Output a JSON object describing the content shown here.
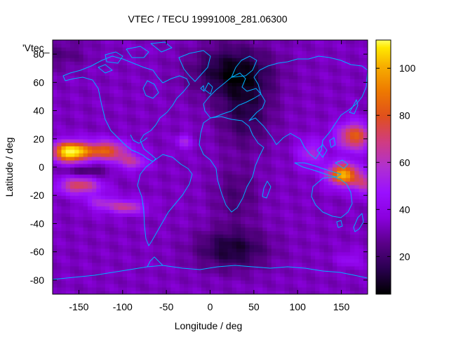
{
  "chart_data": {
    "type": "heatmap",
    "title": "VTEC / TECU 19991008_281.06300",
    "xlabel": "Longitude / deg",
    "ylabel": "Latitude / deg",
    "series_label": "'Vtec_",
    "xlim": [
      -180,
      180
    ],
    "ylim": [
      -90,
      90
    ],
    "x_ticks": [
      -150,
      -100,
      -50,
      0,
      50,
      100,
      150
    ],
    "y_ticks": [
      -80,
      -60,
      -40,
      -20,
      0,
      20,
      40,
      60,
      80
    ],
    "colorbar": {
      "range": [
        4,
        112
      ],
      "ticks": [
        20,
        40,
        60,
        80,
        100
      ],
      "palette": [
        "#000000",
        "#2a0050",
        "#5a0088",
        "#8a00dd",
        "#9a10ff",
        "#b030d0",
        "#d03c80",
        "#e0501c",
        "#ee7a00",
        "#f7b000",
        "#ffe800",
        "#ffff60"
      ]
    },
    "grid_resolution": {
      "lon_step": 5,
      "lat_step": 2.5
    },
    "background_tecu": 30,
    "features": [
      {
        "name": "equatorial-crest-north-pacific",
        "lon": -158,
        "lat": 10,
        "peak_tecu": 110
      },
      {
        "name": "equatorial-crest-south-pacific",
        "lon": -150,
        "lat": -14,
        "peak_tecu": 70
      },
      {
        "name": "equatorial-crest-south-america",
        "lon": -95,
        "lat": -28,
        "peak_tecu": 62
      },
      {
        "name": "equatorial-anomaly-west-pacific-north",
        "lon": 160,
        "lat": 20,
        "peak_tecu": 78
      },
      {
        "name": "equatorial-anomaly-west-pacific-south",
        "lon": 150,
        "lat": -5,
        "peak_tecu": 92
      },
      {
        "name": "polar-minimum-north",
        "lon": 25,
        "lat": 68,
        "min_tecu": 8
      },
      {
        "name": "high-latitude-minimum-south",
        "lon": 25,
        "lat": -58,
        "min_tecu": 10
      }
    ],
    "overlay": {
      "type": "coastlines",
      "color": "#00b0ff"
    }
  }
}
